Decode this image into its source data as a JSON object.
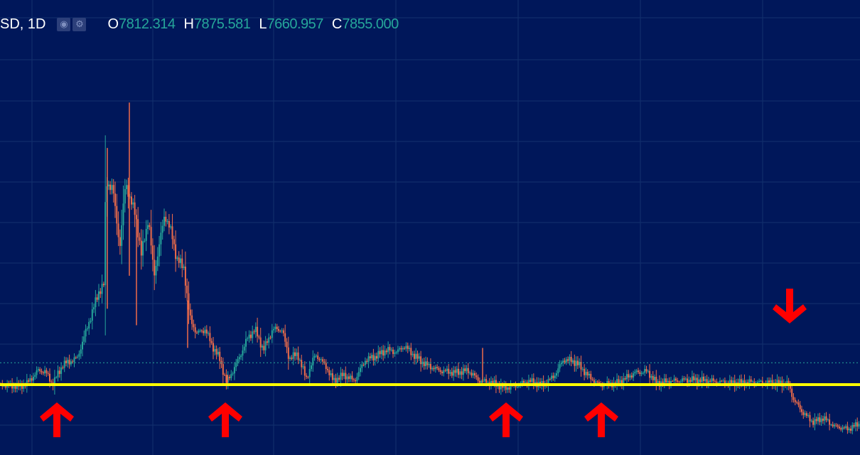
{
  "legend": {
    "symbol": "SD, 1D",
    "open_label": "O",
    "open": "7812.314",
    "high_label": "H",
    "high": "7875.581",
    "low_label": "L",
    "low": "7660.957",
    "close_label": "C",
    "close": "7855.000",
    "icons": [
      "eye-icon",
      "gear-icon"
    ]
  },
  "colors": {
    "background": "#00175a",
    "grid": "#13306e",
    "up": "#26a69a",
    "down": "#ef6c4a",
    "support_line": "#ffff00",
    "dotted_line": "#26a69a",
    "arrows": "#ff0000"
  },
  "chart_data": {
    "type": "candlestick",
    "title": "",
    "xlabel": "",
    "ylabel": "",
    "grid": true,
    "close_path": [
      [
        0,
        7850
      ],
      [
        30,
        7820
      ],
      [
        40,
        7900
      ],
      [
        55,
        8200
      ],
      [
        65,
        8180
      ],
      [
        75,
        7870
      ],
      [
        90,
        8350
      ],
      [
        110,
        8500
      ],
      [
        125,
        9300
      ],
      [
        140,
        10100
      ],
      [
        148,
        10300
      ],
      [
        150,
        12800
      ],
      [
        160,
        12600
      ],
      [
        170,
        11200
      ],
      [
        178,
        12800
      ],
      [
        185,
        12300
      ],
      [
        192,
        12000
      ],
      [
        200,
        11000
      ],
      [
        210,
        11900
      ],
      [
        218,
        10500
      ],
      [
        225,
        11200
      ],
      [
        233,
        12000
      ],
      [
        243,
        11500
      ],
      [
        250,
        10900
      ],
      [
        260,
        10700
      ],
      [
        268,
        9500
      ],
      [
        278,
        9100
      ],
      [
        290,
        9200
      ],
      [
        300,
        8800
      ],
      [
        310,
        8500
      ],
      [
        320,
        7900
      ],
      [
        335,
        8400
      ],
      [
        350,
        9000
      ],
      [
        360,
        9200
      ],
      [
        372,
        8700
      ],
      [
        385,
        9200
      ],
      [
        398,
        9200
      ],
      [
        408,
        8500
      ],
      [
        420,
        8600
      ],
      [
        432,
        8000
      ],
      [
        445,
        8600
      ],
      [
        460,
        8300
      ],
      [
        470,
        7950
      ],
      [
        485,
        8100
      ],
      [
        500,
        7950
      ],
      [
        515,
        8450
      ],
      [
        530,
        8550
      ],
      [
        545,
        8700
      ],
      [
        560,
        8650
      ],
      [
        570,
        8800
      ],
      [
        585,
        8550
      ],
      [
        600,
        8350
      ],
      [
        620,
        8200
      ],
      [
        640,
        8150
      ],
      [
        660,
        8200
      ],
      [
        676,
        7950
      ],
      [
        695,
        7900
      ],
      [
        710,
        7780
      ],
      [
        725,
        7820
      ],
      [
        745,
        7950
      ],
      [
        765,
        7850
      ],
      [
        780,
        8050
      ],
      [
        795,
        8480
      ],
      [
        812,
        8400
      ],
      [
        830,
        8050
      ],
      [
        845,
        7850
      ],
      [
        870,
        7900
      ],
      [
        895,
        8150
      ],
      [
        912,
        8180
      ],
      [
        925,
        7900
      ],
      [
        950,
        7950
      ],
      [
        975,
        7980
      ],
      [
        1000,
        7950
      ],
      [
        1030,
        7900
      ],
      [
        1060,
        7920
      ],
      [
        1090,
        7900
      ],
      [
        1110,
        7880
      ],
      [
        1118,
        7500
      ],
      [
        1130,
        7200
      ],
      [
        1145,
        6950
      ],
      [
        1160,
        7050
      ],
      [
        1175,
        6850
      ],
      [
        1195,
        6780
      ],
      [
        1208,
        6900
      ]
    ],
    "wicks": [
      {
        "x": 151,
        "high": 13600,
        "low": 9700
      },
      {
        "x": 182,
        "high": 14700,
        "low": 10500
      },
      {
        "x": 192,
        "high": 11900,
        "low": 9300
      },
      {
        "x": 264,
        "high": 9900,
        "low": 8750
      },
      {
        "x": 320,
        "high": 8100,
        "low": 7860
      },
      {
        "x": 679,
        "high": 8750,
        "low": 7900
      }
    ],
    "support_level": 7860,
    "dotted_level": 8390,
    "signals": [
      {
        "x": 80,
        "direction": "up"
      },
      {
        "x": 317,
        "direction": "up"
      },
      {
        "x": 712,
        "direction": "up"
      },
      {
        "x": 846,
        "direction": "up"
      },
      {
        "x": 1111,
        "direction": "down"
      }
    ]
  }
}
